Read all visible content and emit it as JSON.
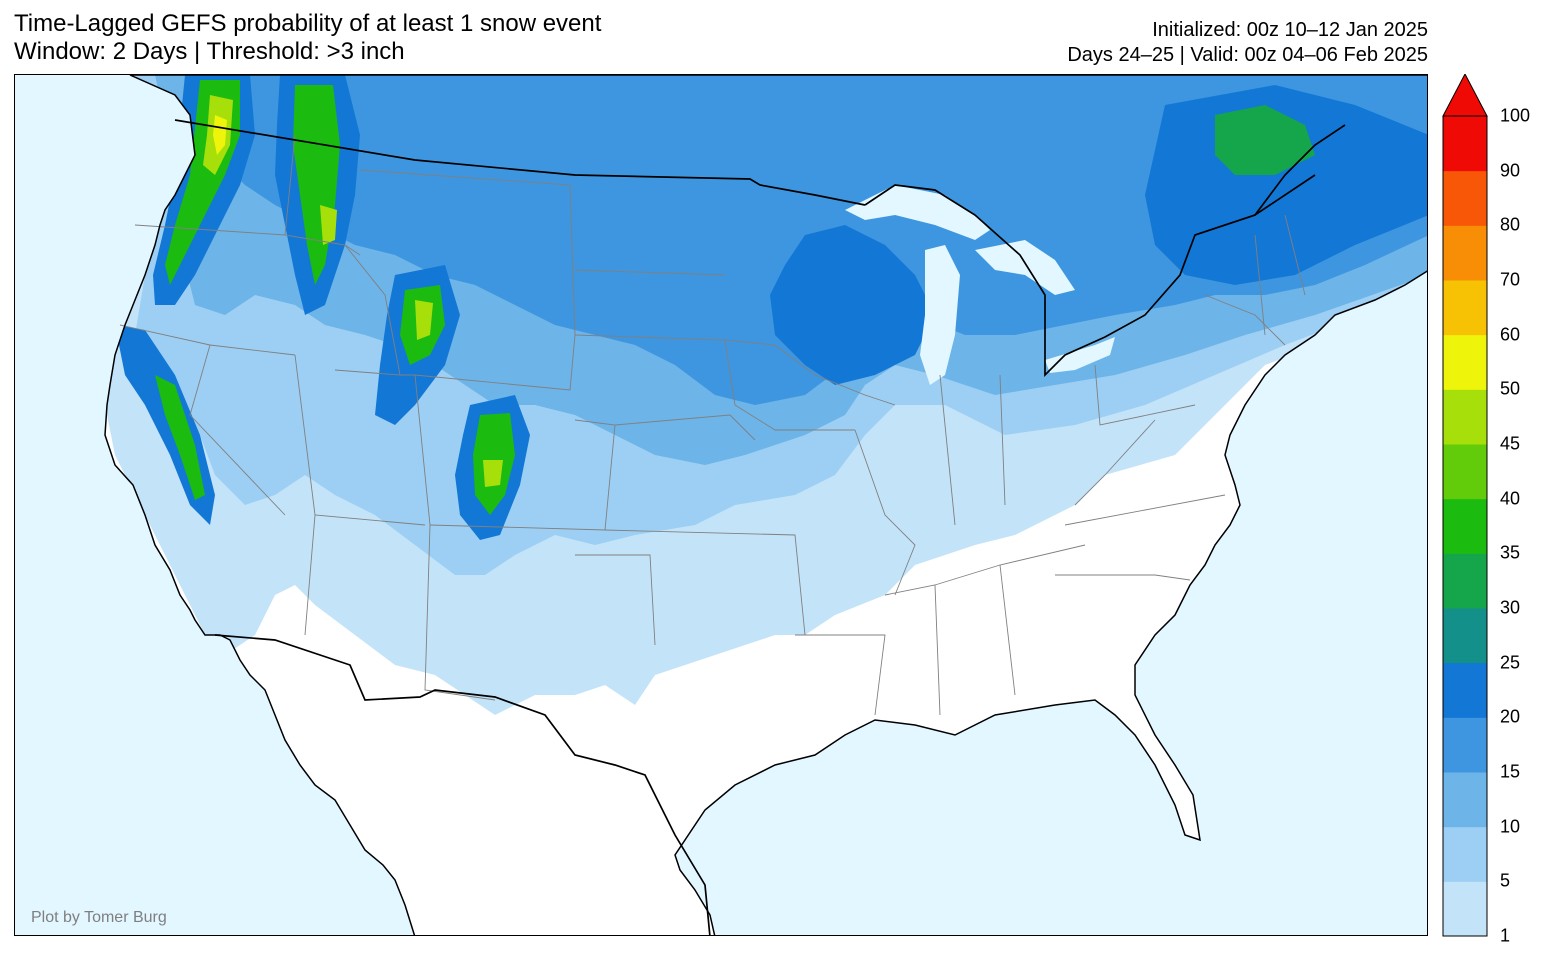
{
  "title": {
    "line1": "Time-Lagged GEFS probability of at least 1 snow event",
    "line2": "Window: 2 Days | Threshold: >3 inch"
  },
  "subtitle": {
    "line1": "Initialized: 00z 10–12 Jan 2025",
    "line2": "Days 24–25 | Valid: 00z 04–06 Feb 2025"
  },
  "credit": "Plot by Tomer Burg",
  "legend": {
    "levels": [
      "1",
      "5",
      "10",
      "15",
      "20",
      "25",
      "30",
      "35",
      "40",
      "45",
      "50",
      "60",
      "70",
      "80",
      "90",
      "100"
    ],
    "colors": [
      "#c3e3f9",
      "#9ccff3",
      "#6db4e9",
      "#3d96df",
      "#1377d6",
      "#13908a",
      "#15a64c",
      "#1bbb10",
      "#63cc0a",
      "#a6df0a",
      "#eef50a",
      "#f6c203",
      "#f88d06",
      "#f75706",
      "#f00a05"
    ],
    "extend": "max"
  },
  "colors": {
    "ocean": "#e2f7ff",
    "land": "#ffffff",
    "border": "#000000",
    "state_lines": "#808080"
  }
}
